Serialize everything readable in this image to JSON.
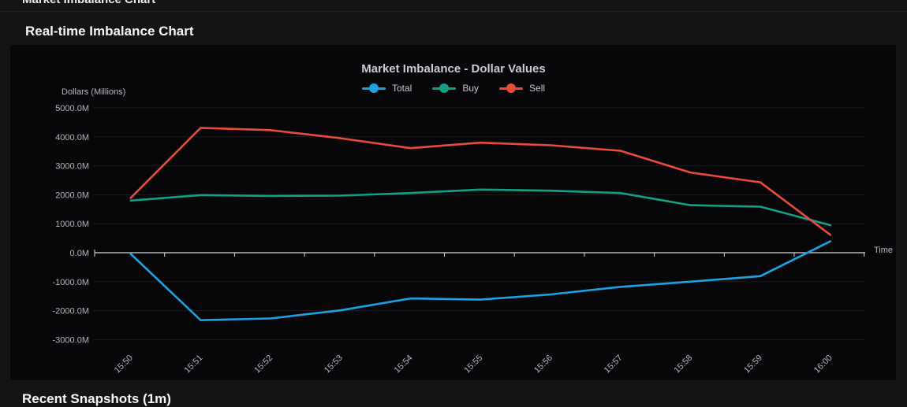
{
  "page": {
    "top_cut_title": "Market Imbalance Chart",
    "section_title": "Real-time Imbalance Chart",
    "bottom_section_title": "Recent Snapshots (1m)"
  },
  "colors": {
    "total": "#1ba2e2",
    "buy": "#10a184",
    "sell": "#e84b3a",
    "axis_line": "#d8d8dc",
    "grid_line": "rgba(255,255,255,0.09)",
    "panel_bg": "#070709"
  },
  "chart_data": {
    "type": "line",
    "title": "Market Imbalance - Dollar Values",
    "y_axis_title": "Dollars (Millions)",
    "x_axis_title": "Time",
    "categories": [
      "15:50",
      "15:51",
      "15:52",
      "15:53",
      "15:54",
      "15:55",
      "15:56",
      "15:57",
      "15:58",
      "15:59",
      "16:00"
    ],
    "series": [
      {
        "name": "Total",
        "color": "#1ba2e2",
        "values": [
          -40,
          -2330,
          -2270,
          -1990,
          -1580,
          -1620,
          -1440,
          -1180,
          -1000,
          -810,
          390
        ]
      },
      {
        "name": "Buy",
        "color": "#10a184",
        "values": [
          1800,
          1990,
          1960,
          1970,
          2060,
          2180,
          2140,
          2060,
          1640,
          1590,
          950
        ]
      },
      {
        "name": "Sell",
        "color": "#e84b3a",
        "values": [
          1890,
          4310,
          4230,
          3950,
          3610,
          3800,
          3710,
          3520,
          2770,
          2430,
          620
        ]
      }
    ],
    "y_ticks": [
      5000,
      4000,
      3000,
      2000,
      1000,
      0,
      -1000,
      -2000,
      -3000
    ],
    "y_tick_labels": [
      "5000.0M",
      "4000.0M",
      "3000.0M",
      "2000.0M",
      "1000.0M",
      "0.0M",
      "-1000.0M",
      "-2000.0M",
      "-3000.0M"
    ],
    "ylim": [
      -3000,
      5000
    ],
    "grid": "horizontal",
    "legend_position": "top",
    "unit": "M"
  }
}
